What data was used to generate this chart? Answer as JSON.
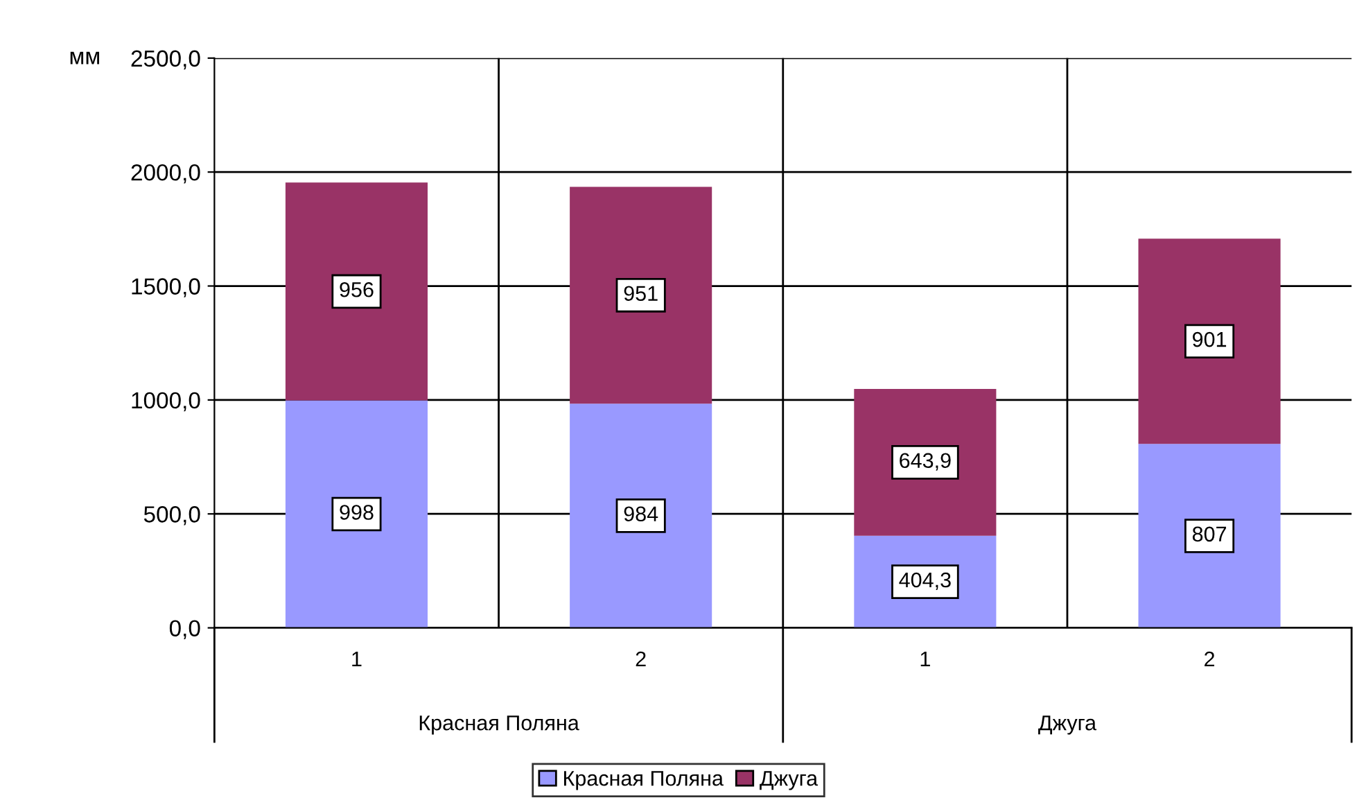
{
  "chart_data": {
    "type": "bar",
    "stacked": true,
    "ylabel": "мм",
    "categories": [
      "1",
      "2",
      "1",
      "2"
    ],
    "series": [
      {
        "name": "Красная Поляна",
        "color": "#9999ff",
        "values": [
          998,
          984,
          404.3,
          807
        ],
        "value_labels": [
          "998",
          "984",
          "404,3",
          "807"
        ]
      },
      {
        "name": "Джуга",
        "color": "#993366",
        "values": [
          956,
          951,
          643.9,
          901
        ],
        "value_labels": [
          "956",
          "951",
          "643,9",
          "901"
        ]
      }
    ],
    "annotations": [
      "Красная Поляна",
      "Джуга"
    ],
    "ylim": [
      0,
      2500
    ],
    "yticks": [
      {
        "value": 0,
        "label": "0,0"
      },
      {
        "value": 500,
        "label": "500,0"
      },
      {
        "value": 1000,
        "label": "1000,0"
      },
      {
        "value": 1500,
        "label": "1500,0"
      },
      {
        "value": 2000,
        "label": "2000,0"
      },
      {
        "value": 2500,
        "label": "2500,0"
      }
    ],
    "grid": true,
    "legend": "bottom"
  }
}
